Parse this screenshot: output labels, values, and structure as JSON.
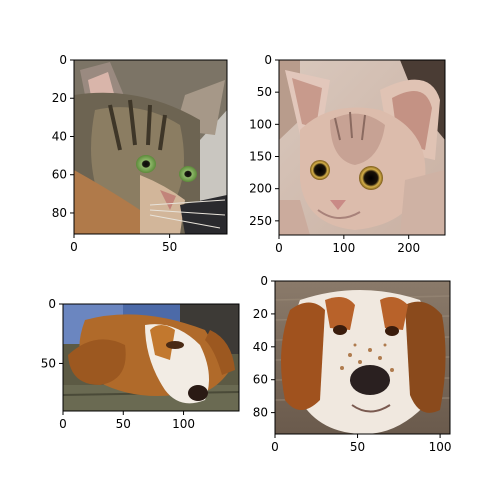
{
  "chart_data": [
    {
      "type": "image",
      "image": "tabby-cat",
      "xlim": [
        0,
        80
      ],
      "ylim": [
        0,
        91
      ],
      "xticks": [
        "0",
        "50"
      ],
      "yticks": [
        "0",
        "20",
        "40",
        "60",
        "80"
      ],
      "xtick_values": [
        0,
        50
      ],
      "ytick_values": [
        0,
        20,
        40,
        60,
        80
      ]
    },
    {
      "type": "image",
      "image": "sphynx-cat",
      "xlim": [
        0,
        256
      ],
      "ylim": [
        0,
        272
      ],
      "xticks": [
        "0",
        "100",
        "200"
      ],
      "yticks": [
        "0",
        "50",
        "100",
        "150",
        "200",
        "250"
      ],
      "xtick_values": [
        0,
        100,
        200
      ],
      "ytick_values": [
        0,
        50,
        100,
        150,
        200,
        250
      ]
    },
    {
      "type": "image",
      "image": "basset-hound",
      "xlim": [
        0,
        146
      ],
      "ylim": [
        0,
        90
      ],
      "xticks": [
        "0",
        "50",
        "100"
      ],
      "yticks": [
        "0",
        "50"
      ],
      "xtick_values": [
        0,
        50,
        100
      ],
      "ytick_values": [
        0,
        50
      ]
    },
    {
      "type": "image",
      "image": "english-setter",
      "xlim": [
        0,
        106
      ],
      "ylim": [
        0,
        93
      ],
      "xticks": [
        "0",
        "50",
        "100"
      ],
      "yticks": [
        "0",
        "20",
        "40",
        "60",
        "80"
      ],
      "xtick_values": [
        0,
        50,
        100
      ],
      "ytick_values": [
        0,
        20,
        40,
        60,
        80
      ]
    }
  ]
}
